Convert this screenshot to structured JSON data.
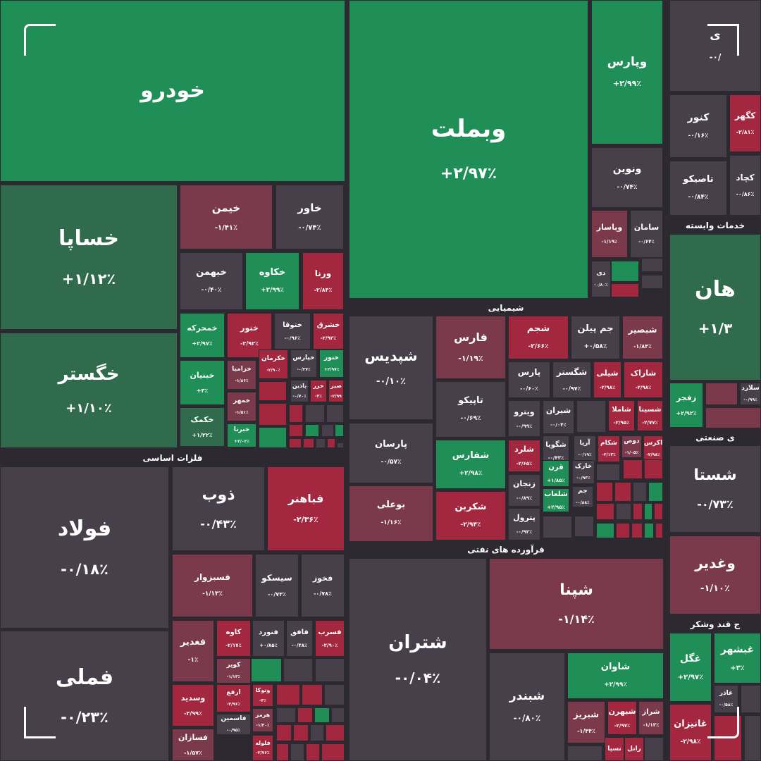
{
  "chart_data": {
    "type": "treemap",
    "title": "",
    "colors": {
      "strong_green": "#1f8f57",
      "green": "#2f6b4c",
      "gray": "#47404b",
      "pink": "#7a3a4c",
      "red": "#a3273f",
      "background": "#2c2a30"
    },
    "sectors": [
      {
        "name": "خودرو"
      },
      {
        "name": "فلزات اساسی"
      },
      {
        "name": "شیمیایی"
      },
      {
        "name": "فرآورده های نفتی"
      },
      {
        "name": "خدمات وابسته"
      },
      {
        "name": "ی صنعتی"
      },
      {
        "name": "ج قند وشکر"
      }
    ],
    "tiles": [
      {
        "symbol": "خودرو",
        "change": "",
        "color": "strong_green"
      },
      {
        "symbol": "خساپا",
        "change": "+۱/۱۲٪",
        "color": "green"
      },
      {
        "symbol": "خگستر",
        "change": "+۱/۱۰٪",
        "color": "green"
      },
      {
        "symbol": "خیمن",
        "change": "-۱/۴۱٪",
        "color": "pink"
      },
      {
        "symbol": "خاور",
        "change": "-۰/۷۴٪",
        "color": "gray"
      },
      {
        "symbol": "خبهمن",
        "change": "-۰/۴۰٪",
        "color": "gray"
      },
      {
        "symbol": "خکاوه",
        "change": "+۲/۹۹٪",
        "color": "strong_green"
      },
      {
        "symbol": "ورنا",
        "change": "-۲/۸۴٪",
        "color": "red"
      },
      {
        "symbol": "خمحرکه",
        "change": "+۲/۹۷٪",
        "color": "strong_green"
      },
      {
        "symbol": "ختور",
        "change": "-۲/۹۲٪",
        "color": "red"
      },
      {
        "symbol": "ختوقا",
        "change": "-۰/۹۶٪",
        "color": "gray"
      },
      {
        "symbol": "خشرق",
        "change": "-۲/۹۲٪",
        "color": "red"
      },
      {
        "symbol": "خبنیان",
        "change": "+۳٪",
        "color": "strong_green"
      },
      {
        "symbol": "خزامیا",
        "change": "-۱/۸۶٪",
        "color": "pink"
      },
      {
        "symbol": "خکرمان",
        "change": "-۲/۹۰٪",
        "color": "red"
      },
      {
        "symbol": "خپارس",
        "change": "-۰/۳۷٪",
        "color": "gray"
      },
      {
        "symbol": "خنور",
        "change": "+۲/۹۷٪",
        "color": "strong_green"
      },
      {
        "symbol": "خمهر",
        "change": "-۱/۵۱٪",
        "color": "pink"
      },
      {
        "symbol": "باذین",
        "change": "-۰/۷۰٪",
        "color": "gray"
      },
      {
        "symbol": "خزر",
        "change": "-۳٪",
        "color": "red"
      },
      {
        "symbol": "صیر",
        "change": "-۲/۹۹",
        "color": "red"
      },
      {
        "symbol": "خکمک",
        "change": "+۱/۲۲٪",
        "color": "green"
      },
      {
        "symbol": "خبرنا",
        "change": "+۲/۰۲٪",
        "color": "strong_green"
      },
      {
        "symbol": "وبملت",
        "change": "+۲/۹۷٪",
        "color": "strong_green"
      },
      {
        "symbol": "وپارس",
        "change": "+۲/۹۹٪",
        "color": "strong_green"
      },
      {
        "symbol": "ونوین",
        "change": "-۰/۷۴٪",
        "color": "gray"
      },
      {
        "symbol": "وپاسار",
        "change": "-۱/۱۹٪",
        "color": "pink"
      },
      {
        "symbol": "سامان",
        "change": "-۰/۶۴٪",
        "color": "gray"
      },
      {
        "symbol": "دی",
        "change": "-۰/۸۰٪",
        "color": "gray"
      },
      {
        "symbol": "کنور",
        "change": "-۰/۱۶٪",
        "color": "gray"
      },
      {
        "symbol": "کگهر",
        "change": "-۲/۸۱٪",
        "color": "red"
      },
      {
        "symbol": "تاصیکو",
        "change": "-۰/۸۴٪",
        "color": "gray"
      },
      {
        "symbol": "کچاد",
        "change": "-۰/۸۶٪",
        "color": "gray"
      },
      {
        "symbol": "هان",
        "change": "+۱/۳",
        "color": "green"
      },
      {
        "symbol": "زفجر",
        "change": "+۲/۹۲٪",
        "color": "strong_green"
      },
      {
        "symbol": "سلارد",
        "change": "-۰/۹۹٪",
        "color": "gray"
      },
      {
        "symbol": "فولاد",
        "change": "-۰/۱۸٪",
        "color": "gray"
      },
      {
        "symbol": "فملی",
        "change": "-۰/۲۳٪",
        "color": "gray"
      },
      {
        "symbol": "ذوب",
        "change": "-۰/۴۳٪",
        "color": "gray"
      },
      {
        "symbol": "فباهنر",
        "change": "-۲/۳۶٪",
        "color": "red"
      },
      {
        "symbol": "فسبزوار",
        "change": "-۱/۱۳٪",
        "color": "pink"
      },
      {
        "symbol": "سیسکو",
        "change": "-۰/۷۳٪",
        "color": "gray"
      },
      {
        "symbol": "فخوز",
        "change": "-۰/۷۸٪",
        "color": "gray"
      },
      {
        "symbol": "فغدیر",
        "change": "-۱٪",
        "color": "pink"
      },
      {
        "symbol": "کاوه",
        "change": "-۲/۱۷٪",
        "color": "red"
      },
      {
        "symbol": "فنورد",
        "change": "+۰/۸۵٪",
        "color": "gray"
      },
      {
        "symbol": "فافق",
        "change": "-۰/۴۸٪",
        "color": "gray"
      },
      {
        "symbol": "فسرب",
        "change": "-۲/۹۰٪",
        "color": "red"
      },
      {
        "symbol": "کویر",
        "change": "-۱/۱۳٪",
        "color": "pink"
      },
      {
        "symbol": "وسدید",
        "change": "-۲/۹۹٪",
        "color": "red"
      },
      {
        "symbol": "ارفع",
        "change": "-۲/۹۶٪",
        "color": "red"
      },
      {
        "symbol": "ونوکا",
        "change": "-۳٪",
        "color": "red"
      },
      {
        "symbol": "فاسمین",
        "change": "-۰/۹۵٪",
        "color": "gray"
      },
      {
        "symbol": "هرمز",
        "change": "-۱/۳۰٪",
        "color": "pink"
      },
      {
        "symbol": "فسازان",
        "change": "-۱/۵۷٪",
        "color": "pink"
      },
      {
        "symbol": "فلوله",
        "change": "-۲/۷۶٪",
        "color": "red"
      },
      {
        "symbol": "شپدیس",
        "change": "-۰/۱۰٪",
        "color": "gray"
      },
      {
        "symbol": "پارسان",
        "change": "-۰/۵۷٪",
        "color": "gray"
      },
      {
        "symbol": "بوعلی",
        "change": "-۱/۱۶٪",
        "color": "pink"
      },
      {
        "symbol": "فارس",
        "change": "-۱/۱۹٪",
        "color": "pink"
      },
      {
        "symbol": "تاپیکو",
        "change": "-۰/۶۹٪",
        "color": "gray"
      },
      {
        "symbol": "شفارس",
        "change": "+۲/۹۸٪",
        "color": "strong_green"
      },
      {
        "symbol": "شکربن",
        "change": "-۲/۹۴٪",
        "color": "red"
      },
      {
        "symbol": "شجم",
        "change": "-۲/۶۶٪",
        "color": "red"
      },
      {
        "symbol": "جم پیلن",
        "change": "+۰/۵۸٪",
        "color": "gray"
      },
      {
        "symbol": "شبصیر",
        "change": "-۱/۸۳٪",
        "color": "pink"
      },
      {
        "symbol": "پارس",
        "change": "-۰/۶۰٪",
        "color": "gray"
      },
      {
        "symbol": "شگستر",
        "change": "-۰/۹۷٪",
        "color": "gray"
      },
      {
        "symbol": "شیلی",
        "change": "-۲/۹۸٪",
        "color": "red"
      },
      {
        "symbol": "شاراک",
        "change": "-۲/۹۸٪",
        "color": "red"
      },
      {
        "symbol": "ویترو",
        "change": "-۰/۹۹٪",
        "color": "gray"
      },
      {
        "symbol": "شیران",
        "change": "-۰/۰۴٪",
        "color": "gray"
      },
      {
        "symbol": "شاملا",
        "change": "-۲/۹۵٪",
        "color": "red"
      },
      {
        "symbol": "شسینا",
        "change": "-۲/۷۷٪",
        "color": "red"
      },
      {
        "symbol": "شلرد",
        "change": "-۲/۶۵٪",
        "color": "red"
      },
      {
        "symbol": "شگویا",
        "change": "-۰/۴۳٪",
        "color": "gray"
      },
      {
        "symbol": "آریا",
        "change": "-۰/۱۹٪",
        "color": "gray"
      },
      {
        "symbol": "شکام",
        "change": "-۲/۱۳٪",
        "color": "red"
      },
      {
        "symbol": "دوص",
        "change": "-۱/۰۵٪",
        "color": "pink"
      },
      {
        "symbol": "اکرس",
        "change": "-۲/۹۸٪",
        "color": "red"
      },
      {
        "symbol": "زنجان",
        "change": "-۰/۸۹٪",
        "color": "gray"
      },
      {
        "symbol": "قرن",
        "change": "+۱/۸۵٪",
        "color": "strong_green"
      },
      {
        "symbol": "خارک",
        "change": "-۰/۹۳٪",
        "color": "gray"
      },
      {
        "symbol": "شلعاب",
        "change": "+۲/۹۵٪",
        "color": "strong_green"
      },
      {
        "symbol": "جم",
        "change": "-۰/۸۸٪",
        "color": "gray"
      },
      {
        "symbol": "پترول",
        "change": "-۰/۹۲٪",
        "color": "gray"
      },
      {
        "symbol": "شتران",
        "change": "-۰/۰۴٪",
        "color": "gray"
      },
      {
        "symbol": "شپنا",
        "change": "-۱/۱۴٪",
        "color": "pink"
      },
      {
        "symbol": "شبندر",
        "change": "-۰/۸۰٪",
        "color": "gray"
      },
      {
        "symbol": "شاوان",
        "change": "+۲/۹۹٪",
        "color": "strong_green"
      },
      {
        "symbol": "شبریز",
        "change": "-۱/۴۴٪",
        "color": "pink"
      },
      {
        "symbol": "شیهرن",
        "change": "-۲/۹۷٪",
        "color": "red"
      },
      {
        "symbol": "شراز",
        "change": "-۱/۱۳٪",
        "color": "pink"
      },
      {
        "symbol": "نسپا",
        "change": "",
        "color": "red"
      },
      {
        "symbol": "رانل",
        "change": "",
        "color": "red"
      },
      {
        "symbol": "شستا",
        "change": "-۰/۷۳٪",
        "color": "gray"
      },
      {
        "symbol": "وغدیر",
        "change": "-۱/۱۰٪",
        "color": "pink"
      },
      {
        "symbol": "غگل",
        "change": "+۲/۹۷٪",
        "color": "strong_green"
      },
      {
        "symbol": "غبشهر",
        "change": "+۳٪",
        "color": "strong_green"
      },
      {
        "symbol": "غاذر",
        "change": "-۰/۵۸٪",
        "color": "gray"
      },
      {
        "symbol": "غانیزان",
        "change": "-۲/۹۸٪",
        "color": "red"
      },
      {
        "symbol": "ی",
        "change": "-۰/",
        "color": "gray"
      }
    ]
  }
}
